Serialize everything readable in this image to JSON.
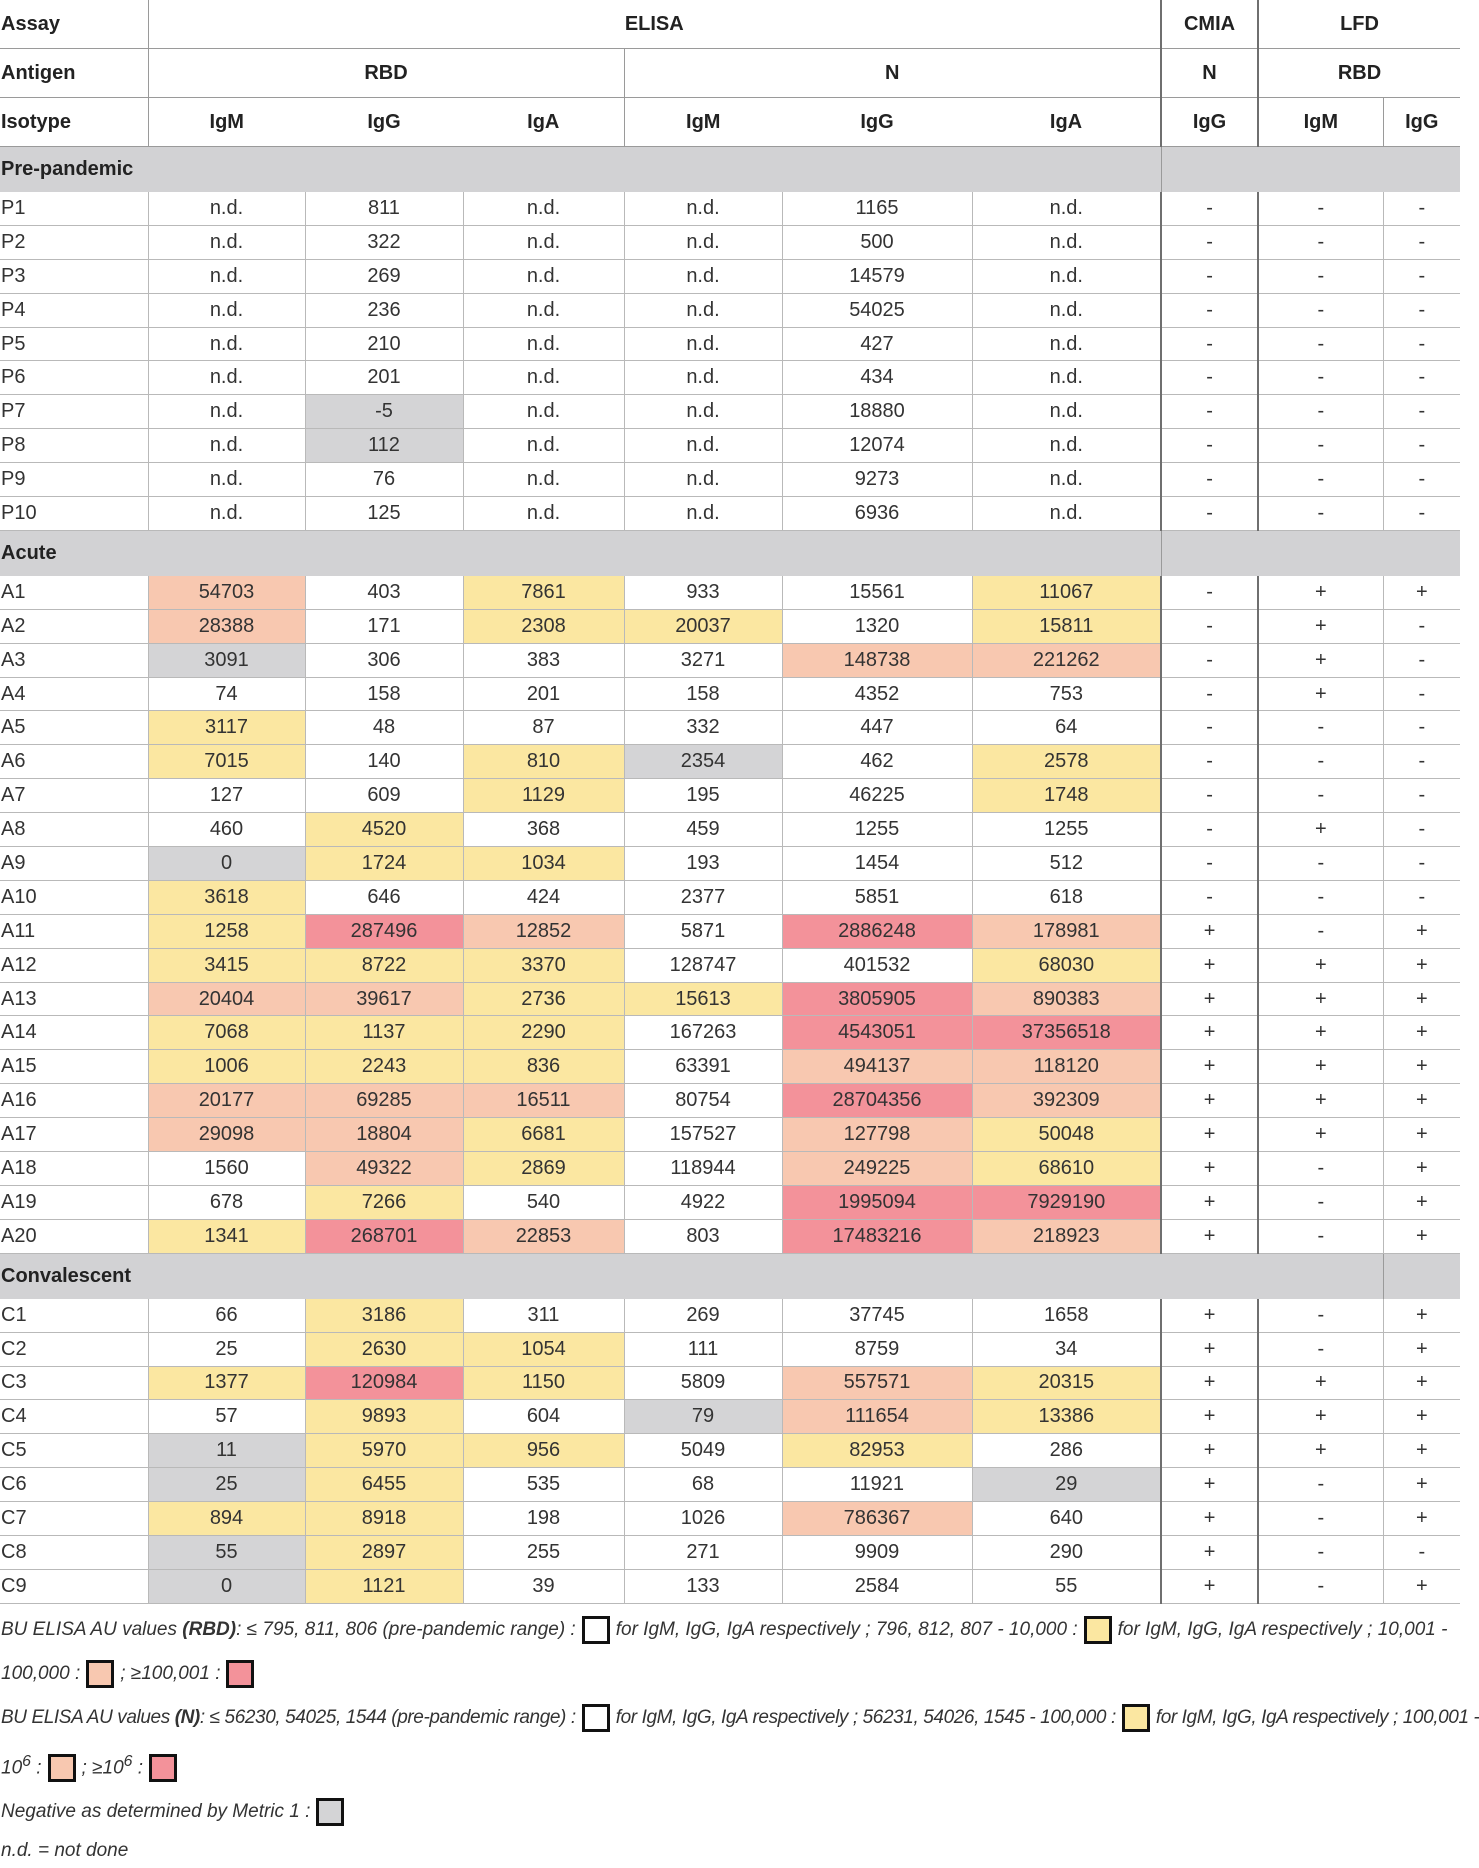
{
  "header": {
    "row1": {
      "label": "Assay",
      "elisa": "ELISA",
      "cmia": "CMIA",
      "lfd": "LFD"
    },
    "row2": {
      "label": "Antigen",
      "rbd": "RBD",
      "n": "N",
      "cmia_n": "N",
      "lfd_rbd": "RBD"
    },
    "row3": {
      "label": "Isotype",
      "cols": [
        "IgM",
        "IgG",
        "IgA",
        "IgM",
        "IgG",
        "IgA",
        "IgG",
        "IgM",
        "IgG"
      ]
    }
  },
  "colors": {
    "0": "#ffffff",
    "1": "#fbe7a1",
    "2": "#f8c8b0",
    "3": "#f3929a",
    "g": "#d4d4d6"
  },
  "sections": [
    {
      "title": "Pre-pandemic",
      "rows": [
        {
          "id": "P1",
          "v": [
            "n.d.",
            "811",
            "n.d.",
            "n.d.",
            "1165",
            "n.d.",
            "-",
            "-",
            "-"
          ],
          "c": [
            "0",
            "0",
            "0",
            "0",
            "0",
            "0"
          ]
        },
        {
          "id": "P2",
          "v": [
            "n.d.",
            "322",
            "n.d.",
            "n.d.",
            "500",
            "n.d.",
            "-",
            "-",
            "-"
          ],
          "c": [
            "0",
            "0",
            "0",
            "0",
            "0",
            "0"
          ]
        },
        {
          "id": "P3",
          "v": [
            "n.d.",
            "269",
            "n.d.",
            "n.d.",
            "14579",
            "n.d.",
            "-",
            "-",
            "-"
          ],
          "c": [
            "0",
            "0",
            "0",
            "0",
            "0",
            "0"
          ]
        },
        {
          "id": "P4",
          "v": [
            "n.d.",
            "236",
            "n.d.",
            "n.d.",
            "54025",
            "n.d.",
            "-",
            "-",
            "-"
          ],
          "c": [
            "0",
            "0",
            "0",
            "0",
            "0",
            "0"
          ]
        },
        {
          "id": "P5",
          "v": [
            "n.d.",
            "210",
            "n.d.",
            "n.d.",
            "427",
            "n.d.",
            "-",
            "-",
            "-"
          ],
          "c": [
            "0",
            "0",
            "0",
            "0",
            "0",
            "0"
          ]
        },
        {
          "id": "P6",
          "v": [
            "n.d.",
            "201",
            "n.d.",
            "n.d.",
            "434",
            "n.d.",
            "-",
            "-",
            "-"
          ],
          "c": [
            "0",
            "0",
            "0",
            "0",
            "0",
            "0"
          ]
        },
        {
          "id": "P7",
          "v": [
            "n.d.",
            "-5",
            "n.d.",
            "n.d.",
            "18880",
            "n.d.",
            "-",
            "-",
            "-"
          ],
          "c": [
            "0",
            "g",
            "0",
            "0",
            "0",
            "0"
          ]
        },
        {
          "id": "P8",
          "v": [
            "n.d.",
            "112",
            "n.d.",
            "n.d.",
            "12074",
            "n.d.",
            "-",
            "-",
            "-"
          ],
          "c": [
            "0",
            "g",
            "0",
            "0",
            "0",
            "0"
          ]
        },
        {
          "id": "P9",
          "v": [
            "n.d.",
            "76",
            "n.d.",
            "n.d.",
            "9273",
            "n.d.",
            "-",
            "-",
            "-"
          ],
          "c": [
            "0",
            "0",
            "0",
            "0",
            "0",
            "0"
          ]
        },
        {
          "id": "P10",
          "v": [
            "n.d.",
            "125",
            "n.d.",
            "n.d.",
            "6936",
            "n.d.",
            "-",
            "-",
            "-"
          ],
          "c": [
            "0",
            "0",
            "0",
            "0",
            "0",
            "0"
          ]
        }
      ]
    },
    {
      "title": "Acute",
      "rows": [
        {
          "id": "A1",
          "v": [
            "54703",
            "403",
            "7861",
            "933",
            "15561",
            "11067",
            "-",
            "+",
            "+"
          ],
          "c": [
            "2",
            "0",
            "1",
            "0",
            "0",
            "1"
          ]
        },
        {
          "id": "A2",
          "v": [
            "28388",
            "171",
            "2308",
            "20037",
            "1320",
            "15811",
            "-",
            "+",
            "-"
          ],
          "c": [
            "2",
            "0",
            "1",
            "1",
            "0",
            "1"
          ]
        },
        {
          "id": "A3",
          "v": [
            "3091",
            "306",
            "383",
            "3271",
            "148738",
            "221262",
            "-",
            "+",
            "-"
          ],
          "c": [
            "g",
            "0",
            "0",
            "0",
            "2",
            "2"
          ]
        },
        {
          "id": "A4",
          "v": [
            "74",
            "158",
            "201",
            "158",
            "4352",
            "753",
            "-",
            "+",
            "-"
          ],
          "c": [
            "0",
            "0",
            "0",
            "0",
            "0",
            "0"
          ]
        },
        {
          "id": "A5",
          "v": [
            "3117",
            "48",
            "87",
            "332",
            "447",
            "64",
            "-",
            "-",
            "-"
          ],
          "c": [
            "1",
            "0",
            "0",
            "0",
            "0",
            "0"
          ]
        },
        {
          "id": "A6",
          "v": [
            "7015",
            "140",
            "810",
            "2354",
            "462",
            "2578",
            "-",
            "-",
            "-"
          ],
          "c": [
            "1",
            "0",
            "1",
            "g",
            "0",
            "1"
          ]
        },
        {
          "id": "A7",
          "v": [
            "127",
            "609",
            "1129",
            "195",
            "46225",
            "1748",
            "-",
            "-",
            "-"
          ],
          "c": [
            "0",
            "0",
            "1",
            "0",
            "0",
            "1"
          ]
        },
        {
          "id": "A8",
          "v": [
            "460",
            "4520",
            "368",
            "459",
            "1255",
            "1255",
            "-",
            "+",
            "-"
          ],
          "c": [
            "0",
            "1",
            "0",
            "0",
            "0",
            "0"
          ]
        },
        {
          "id": "A9",
          "v": [
            "0",
            "1724",
            "1034",
            "193",
            "1454",
            "512",
            "-",
            "-",
            "-"
          ],
          "c": [
            "g",
            "1",
            "1",
            "0",
            "0",
            "0"
          ]
        },
        {
          "id": "A10",
          "v": [
            "3618",
            "646",
            "424",
            "2377",
            "5851",
            "618",
            "-",
            "-",
            "-"
          ],
          "c": [
            "1",
            "0",
            "0",
            "0",
            "0",
            "0"
          ]
        },
        {
          "id": "A11",
          "v": [
            "1258",
            "287496",
            "12852",
            "5871",
            "2886248",
            "178981",
            "+",
            "-",
            "+"
          ],
          "c": [
            "1",
            "3",
            "2",
            "0",
            "3",
            "2"
          ]
        },
        {
          "id": "A12",
          "v": [
            "3415",
            "8722",
            "3370",
            "128747",
            "401532",
            "68030",
            "+",
            "+",
            "+"
          ],
          "c": [
            "1",
            "1",
            "1",
            "0",
            "0",
            "1"
          ]
        },
        {
          "id": "A13",
          "v": [
            "20404",
            "39617",
            "2736",
            "15613",
            "3805905",
            "890383",
            "+",
            "+",
            "+"
          ],
          "c": [
            "2",
            "2",
            "1",
            "1",
            "3",
            "2"
          ]
        },
        {
          "id": "A14",
          "v": [
            "7068",
            "1137",
            "2290",
            "167263",
            "4543051",
            "37356518",
            "+",
            "+",
            "+"
          ],
          "c": [
            "1",
            "1",
            "1",
            "0",
            "3",
            "3"
          ]
        },
        {
          "id": "A15",
          "v": [
            "1006",
            "2243",
            "836",
            "63391",
            "494137",
            "118120",
            "+",
            "+",
            "+"
          ],
          "c": [
            "1",
            "1",
            "1",
            "0",
            "2",
            "2"
          ]
        },
        {
          "id": "A16",
          "v": [
            "20177",
            "69285",
            "16511",
            "80754",
            "28704356",
            "392309",
            "+",
            "+",
            "+"
          ],
          "c": [
            "2",
            "2",
            "2",
            "0",
            "3",
            "2"
          ]
        },
        {
          "id": "A17",
          "v": [
            "29098",
            "18804",
            "6681",
            "157527",
            "127798",
            "50048",
            "+",
            "+",
            "+"
          ],
          "c": [
            "2",
            "2",
            "1",
            "0",
            "2",
            "1"
          ]
        },
        {
          "id": "A18",
          "v": [
            "1560",
            "49322",
            "2869",
            "118944",
            "249225",
            "68610",
            "+",
            "-",
            "+"
          ],
          "c": [
            "0",
            "2",
            "1",
            "0",
            "2",
            "1"
          ]
        },
        {
          "id": "A19",
          "v": [
            "678",
            "7266",
            "540",
            "4922",
            "1995094",
            "7929190",
            "+",
            "-",
            "+"
          ],
          "c": [
            "0",
            "1",
            "0",
            "0",
            "3",
            "3"
          ]
        },
        {
          "id": "A20",
          "v": [
            "1341",
            "268701",
            "22853",
            "803",
            "17483216",
            "218923",
            "+",
            "-",
            "+"
          ],
          "c": [
            "1",
            "3",
            "2",
            "0",
            "3",
            "2"
          ]
        }
      ]
    },
    {
      "title": "Convalescent",
      "rows": [
        {
          "id": "C1",
          "v": [
            "66",
            "3186",
            "311",
            "269",
            "37745",
            "1658",
            "+",
            "-",
            "+"
          ],
          "c": [
            "0",
            "1",
            "0",
            "0",
            "0",
            "0"
          ]
        },
        {
          "id": "C2",
          "v": [
            "25",
            "2630",
            "1054",
            "111",
            "8759",
            "34",
            "+",
            "-",
            "+"
          ],
          "c": [
            "0",
            "1",
            "1",
            "0",
            "0",
            "0"
          ]
        },
        {
          "id": "C3",
          "v": [
            "1377",
            "120984",
            "1150",
            "5809",
            "557571",
            "20315",
            "+",
            "+",
            "+"
          ],
          "c": [
            "1",
            "3",
            "1",
            "0",
            "2",
            "1"
          ]
        },
        {
          "id": "C4",
          "v": [
            "57",
            "9893",
            "604",
            "79",
            "111654",
            "13386",
            "+",
            "+",
            "+"
          ],
          "c": [
            "0",
            "1",
            "0",
            "g",
            "2",
            "1"
          ]
        },
        {
          "id": "C5",
          "v": [
            "11",
            "5970",
            "956",
            "5049",
            "82953",
            "286",
            "+",
            "+",
            "+"
          ],
          "c": [
            "g",
            "1",
            "1",
            "0",
            "1",
            "0"
          ]
        },
        {
          "id": "C6",
          "v": [
            "25",
            "6455",
            "535",
            "68",
            "11921",
            "29",
            "+",
            "-",
            "+"
          ],
          "c": [
            "g",
            "1",
            "0",
            "0",
            "0",
            "g"
          ]
        },
        {
          "id": "C7",
          "v": [
            "894",
            "8918",
            "198",
            "1026",
            "786367",
            "640",
            "+",
            "-",
            "+"
          ],
          "c": [
            "1",
            "1",
            "0",
            "0",
            "2",
            "0"
          ]
        },
        {
          "id": "C8",
          "v": [
            "55",
            "2897",
            "255",
            "271",
            "9909",
            "290",
            "+",
            "-",
            "-"
          ],
          "c": [
            "g",
            "1",
            "0",
            "0",
            "0",
            "0"
          ]
        },
        {
          "id": "C9",
          "v": [
            "0",
            "1121",
            "39",
            "133",
            "2584",
            "55",
            "+",
            "-",
            "+"
          ],
          "c": [
            "g",
            "1",
            "0",
            "0",
            "0",
            "0"
          ]
        }
      ]
    }
  ],
  "legend": {
    "l1_a": "BU ELISA AU values ",
    "l1_b": "(RBD)",
    "l1_c": ": ≤ 795, 811, 806 (pre-pandemic range) :",
    "l1_d": "for IgM, IgG, IgA respectively ; 796, 812, 807 - 10,000 :",
    "l1_e": "for IgM, IgG, IgA respectively ; 10,001 -",
    "l2_a": "100,000 :",
    "l2_b": "; ≥100,001 :",
    "l3_a": "BU ELISA AU values ",
    "l3_b": "(N)",
    "l3_c": ": ≤ 56230, 54025, 1544 (pre-pandemic range) :",
    "l3_d": "for IgM, IgG, IgA respectively ; 56231, 54026, 1545 - 100,000 :",
    "l3_e": "for IgM, IgG, IgA respectively ; 100,001 -",
    "l4_a": "10",
    "l4_a_sup": "6",
    "l4_b": " :",
    "l4_c": "; ≥10",
    "l4_c_sup": "6",
    "l4_d": " :",
    "l5": "Negative as determined by Metric 1 :",
    "l6": "n.d. = not done"
  }
}
